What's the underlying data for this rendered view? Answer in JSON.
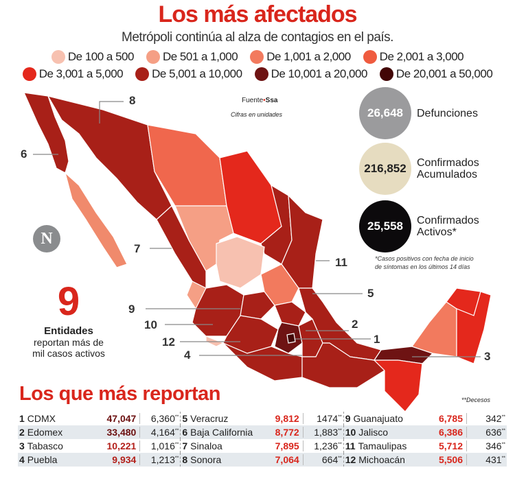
{
  "header": {
    "title": "Los más afectados",
    "subtitle": "Metrópoli continúa al alza de contagios en el país."
  },
  "legend": [
    {
      "label": "De 100 a 500",
      "color": "#f7c1b0"
    },
    {
      "label": "De 501 a 1,000",
      "color": "#f59f85"
    },
    {
      "label": "De 1,001 a 2,000",
      "color": "#f27a5e"
    },
    {
      "label": "De 2,001 a 3,000",
      "color": "#ef5b3f"
    },
    {
      "label": "De 3,001 a 5,000",
      "color": "#e4281c"
    },
    {
      "label": "De 5,001 a 10,000",
      "color": "#a82018"
    },
    {
      "label": "De 10,001 a 20,000",
      "color": "#6e1313"
    },
    {
      "label": "De 20,001 a 50,000",
      "color": "#420606"
    }
  ],
  "map": {
    "source_label": "Fuente",
    "source": "Ssa",
    "units_note": "Cifras en unidades",
    "logo": "N",
    "labels": [
      "1",
      "2",
      "3",
      "4",
      "5",
      "6",
      "7",
      "8",
      "9",
      "10",
      "11",
      "12"
    ]
  },
  "stats": [
    {
      "value": "26,648",
      "label1": "Defunciones",
      "label2": "",
      "color": "#9b9b9d",
      "text_color": "#ffffff"
    },
    {
      "value": "216,852",
      "label1": "Confirmados",
      "label2": "Acumulados",
      "color": "#e6dcc0",
      "text_color": "#222222"
    },
    {
      "value": "25,558",
      "label1": "Confirmados",
      "label2": "Activos*",
      "color": "#0c0a0c",
      "text_color": "#ffffff"
    }
  ],
  "footnote": [
    "*Casos positivos con fecha de inicio",
    "de síntomas en los últimos 14 días"
  ],
  "highlight": {
    "number": "9",
    "title": "Entidades",
    "line1": "reportan más de",
    "line2": "mil casos activos"
  },
  "ranking": {
    "title": "Los que más reportan",
    "deaths_note": "**Decesos",
    "deaths_mark": "**",
    "rows": [
      [
        {
          "rank": "1",
          "state": "CDMX",
          "cases": "47,047",
          "deaths": "6,360",
          "color": "#6b0f0f"
        },
        {
          "rank": "5",
          "state": "Veracruz",
          "cases": "9,812",
          "deaths": "1474",
          "color": "#d9261c"
        },
        {
          "rank": "9",
          "state": "Guanajuato",
          "cases": "6,785",
          "deaths": "342",
          "color": "#d9261c"
        }
      ],
      [
        {
          "rank": "2",
          "state": "Edomex",
          "cases": "33,480",
          "deaths": "4,164",
          "color": "#6b0f0f"
        },
        {
          "rank": "6",
          "state": "Baja California",
          "cases": "8,772",
          "deaths": "1,883",
          "color": "#d9261c"
        },
        {
          "rank": "10",
          "state": "Jalisco",
          "cases": "6,386",
          "deaths": "636",
          "color": "#d9261c"
        }
      ],
      [
        {
          "rank": "3",
          "state": "Tabasco",
          "cases": "10,221",
          "deaths": "1,016",
          "color": "#b3201a"
        },
        {
          "rank": "7",
          "state": "Sinaloa",
          "cases": "7,895",
          "deaths": "1,236",
          "color": "#d9261c"
        },
        {
          "rank": "11",
          "state": "Tamaulipas",
          "cases": "5,712",
          "deaths": "346",
          "color": "#d9261c"
        }
      ],
      [
        {
          "rank": "4",
          "state": "Puebla",
          "cases": "9,934",
          "deaths": "1,213",
          "color": "#b3201a"
        },
        {
          "rank": "8",
          "state": "Sonora",
          "cases": "7,064",
          "deaths": "664",
          "color": "#d9261c"
        },
        {
          "rank": "12",
          "state": "Michoacán",
          "cases": "5,506",
          "deaths": "431",
          "color": "#d9261c"
        }
      ]
    ]
  }
}
